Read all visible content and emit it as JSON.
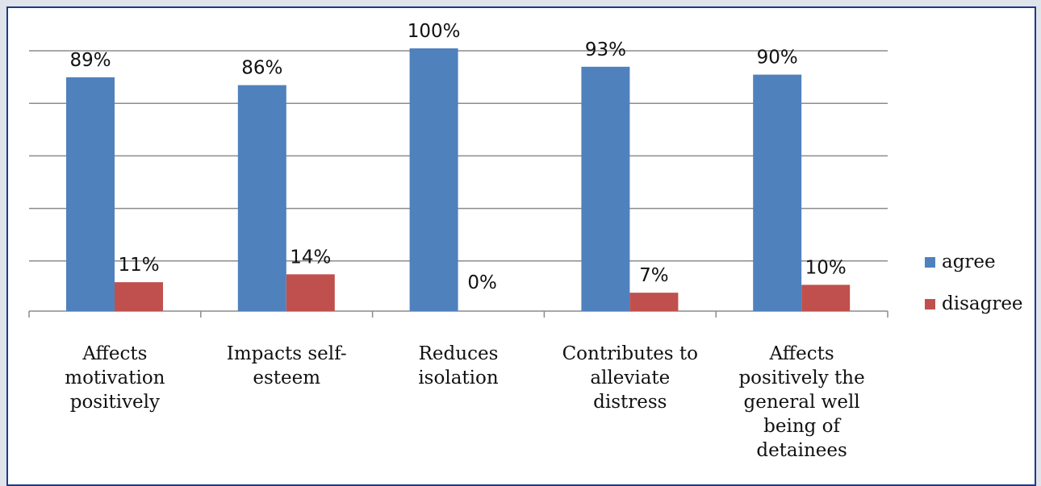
{
  "chart_data": {
    "type": "bar",
    "categories": [
      "Affects motivation positively",
      "Impacts self-esteem",
      "Reduces isolation",
      "Contributes to alleviate distress",
      "Affects positively the general well being of detainees"
    ],
    "category_label_lines": [
      [
        "Affects",
        "motivation",
        "positively"
      ],
      [
        "Impacts self-",
        "esteem"
      ],
      [
        "Reduces",
        "isolation"
      ],
      [
        "Contributes to",
        "alleviate",
        "distress"
      ],
      [
        "Affects",
        "positively the",
        "general well",
        "being of",
        "detainees"
      ]
    ],
    "series": [
      {
        "name": "agree",
        "values": [
          89,
          86,
          100,
          93,
          90
        ],
        "labels": [
          "89%",
          "86%",
          "100%",
          "93%",
          "90%"
        ],
        "color": "#4f81bd"
      },
      {
        "name": "disagree",
        "values": [
          11,
          14,
          0,
          7,
          10
        ],
        "labels": [
          "11%",
          "14%",
          "0%",
          "7%",
          "10%"
        ],
        "color": "#c0504d"
      }
    ],
    "ylim": [
      0,
      100
    ],
    "grid": true,
    "legend": "right",
    "xlabel": "",
    "ylabel": ""
  }
}
